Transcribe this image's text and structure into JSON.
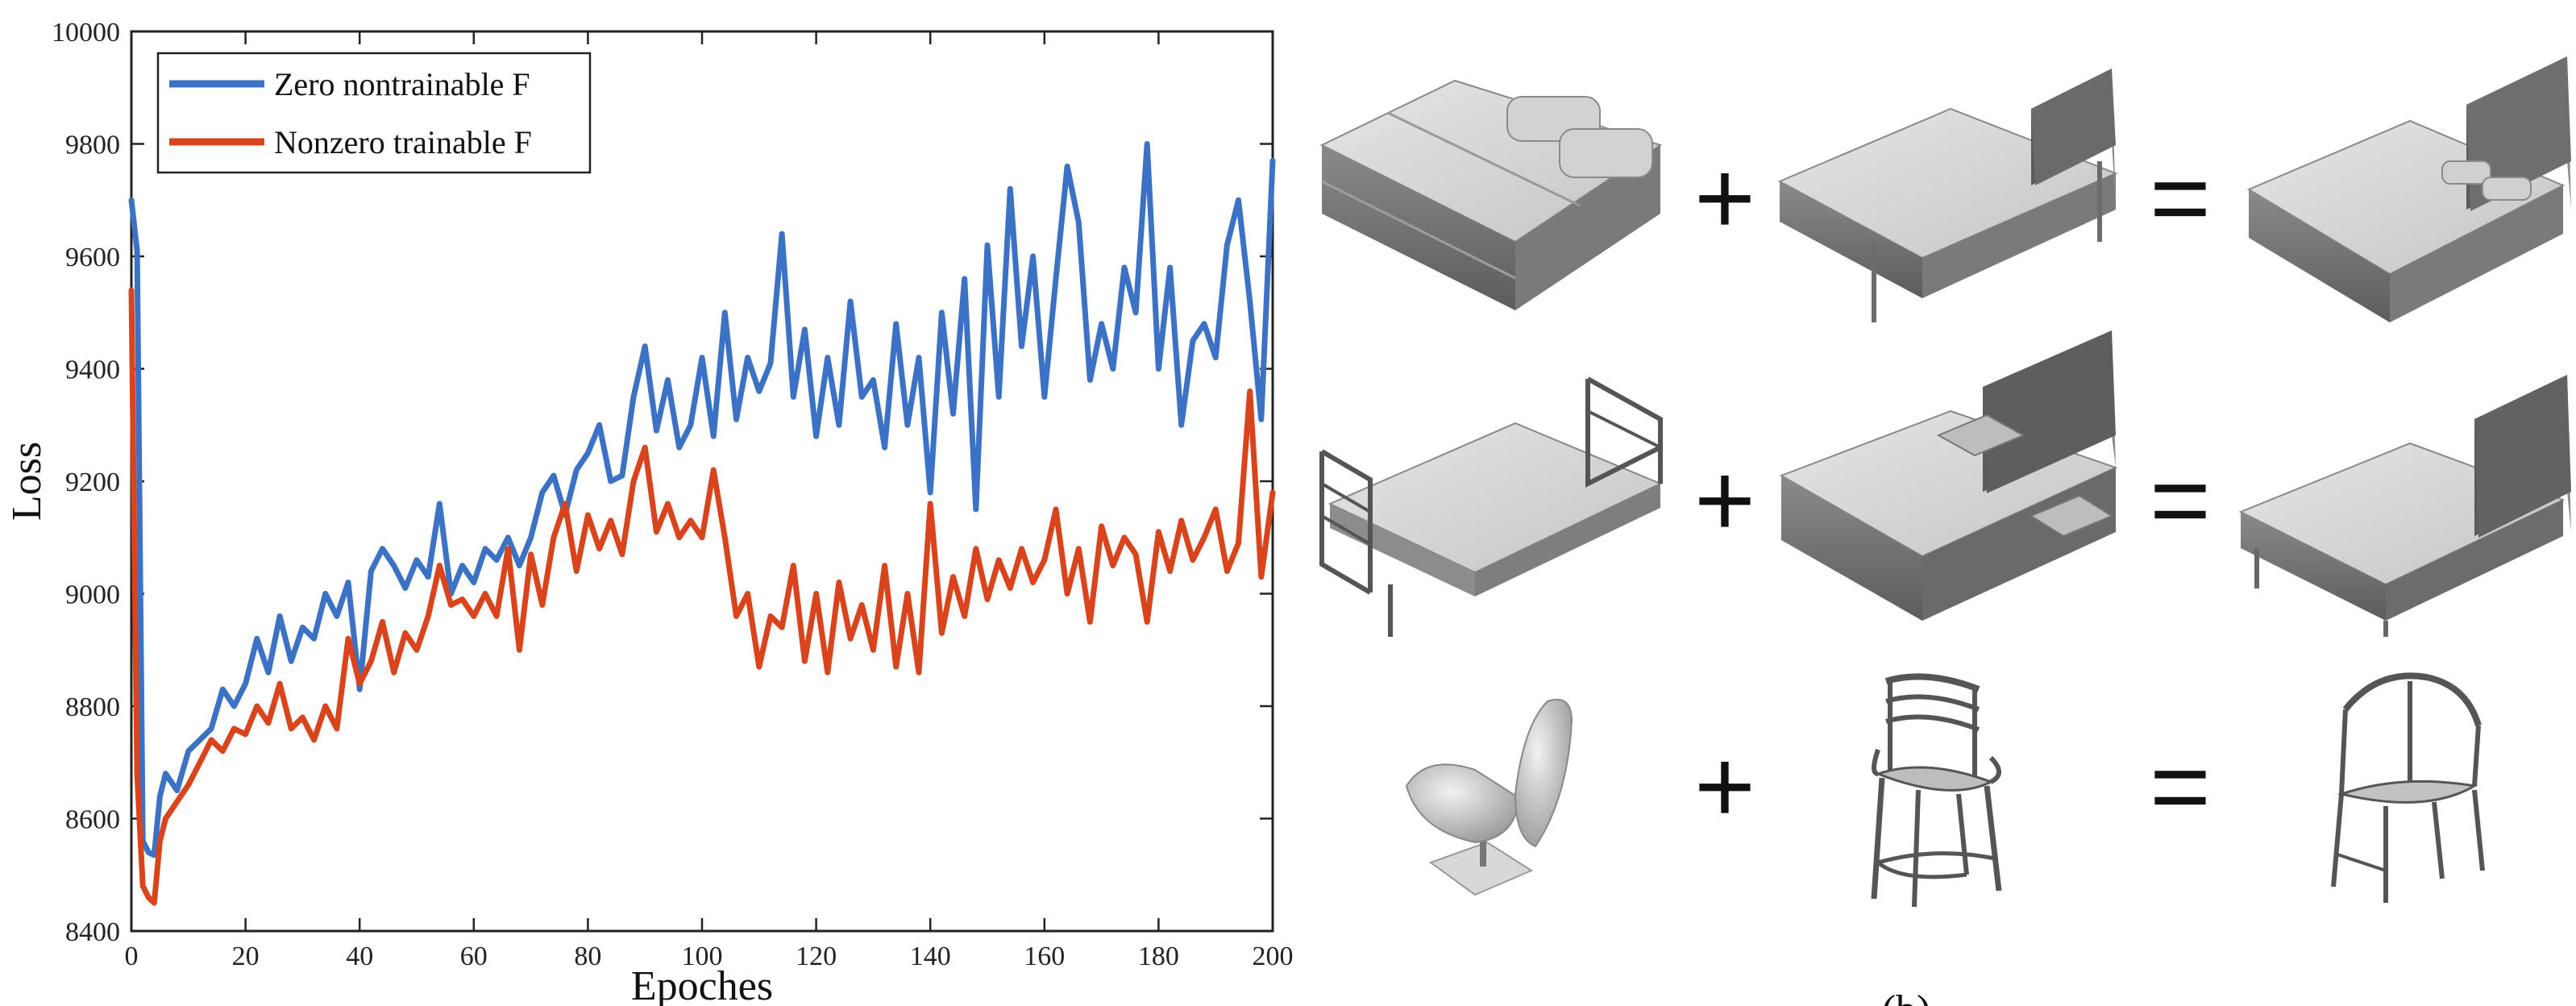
{
  "chart_data": {
    "type": "line",
    "title": "",
    "xlabel": "Epoches",
    "ylabel": "Loss",
    "xlim": [
      0,
      200
    ],
    "ylim": [
      8400,
      10000
    ],
    "xticks": [
      0,
      20,
      40,
      60,
      80,
      100,
      120,
      140,
      160,
      180,
      200
    ],
    "yticks": [
      8400,
      8600,
      8800,
      9000,
      9200,
      9400,
      9600,
      9800,
      10000
    ],
    "legend_position": "top-left",
    "grid": false,
    "series": [
      {
        "name": "Zero nontrainable F",
        "color": "#3b72c6",
        "x": [
          0,
          1,
          2,
          3,
          4,
          5,
          6,
          8,
          10,
          12,
          14,
          16,
          18,
          20,
          22,
          24,
          26,
          28,
          30,
          32,
          34,
          36,
          38,
          40,
          42,
          44,
          46,
          48,
          50,
          52,
          54,
          56,
          58,
          60,
          62,
          64,
          66,
          68,
          70,
          72,
          74,
          76,
          78,
          80,
          82,
          84,
          86,
          88,
          90,
          92,
          94,
          96,
          98,
          100,
          102,
          104,
          106,
          108,
          110,
          112,
          114,
          116,
          118,
          120,
          122,
          124,
          126,
          128,
          130,
          132,
          134,
          136,
          138,
          140,
          142,
          144,
          146,
          148,
          150,
          152,
          154,
          156,
          158,
          160,
          162,
          164,
          166,
          168,
          170,
          172,
          174,
          176,
          178,
          180,
          182,
          184,
          186,
          188,
          190,
          192,
          194,
          196,
          198,
          200
        ],
        "y": [
          9700,
          9610,
          8560,
          8540,
          8535,
          8640,
          8680,
          8650,
          8720,
          8740,
          8760,
          8830,
          8800,
          8840,
          8920,
          8860,
          8960,
          8880,
          8940,
          8920,
          9000,
          8960,
          9020,
          8830,
          9040,
          9080,
          9050,
          9010,
          9060,
          9030,
          9160,
          9000,
          9050,
          9020,
          9080,
          9060,
          9100,
          9050,
          9100,
          9180,
          9210,
          9140,
          9220,
          9250,
          9300,
          9200,
          9210,
          9350,
          9440,
          9290,
          9380,
          9260,
          9300,
          9420,
          9280,
          9500,
          9310,
          9420,
          9360,
          9410,
          9640,
          9350,
          9470,
          9280,
          9420,
          9300,
          9520,
          9350,
          9380,
          9260,
          9480,
          9300,
          9420,
          9180,
          9500,
          9320,
          9560,
          9150,
          9620,
          9350,
          9720,
          9440,
          9600,
          9350,
          9560,
          9760,
          9660,
          9380,
          9480,
          9400,
          9580,
          9500,
          9800,
          9400,
          9580,
          9300,
          9450,
          9480,
          9420,
          9620,
          9700,
          9520,
          9310,
          9770
        ]
      },
      {
        "name": "Nonzero trainable F",
        "color": "#d9441c",
        "x": [
          0,
          1,
          2,
          3,
          4,
          5,
          6,
          8,
          10,
          12,
          14,
          16,
          18,
          20,
          22,
          24,
          26,
          28,
          30,
          32,
          34,
          36,
          38,
          40,
          42,
          44,
          46,
          48,
          50,
          52,
          54,
          56,
          58,
          60,
          62,
          64,
          66,
          68,
          70,
          72,
          74,
          76,
          78,
          80,
          82,
          84,
          86,
          88,
          90,
          92,
          94,
          96,
          98,
          100,
          102,
          104,
          106,
          108,
          110,
          112,
          114,
          116,
          118,
          120,
          122,
          124,
          126,
          128,
          130,
          132,
          134,
          136,
          138,
          140,
          142,
          144,
          146,
          148,
          150,
          152,
          154,
          156,
          158,
          160,
          162,
          164,
          166,
          168,
          170,
          172,
          174,
          176,
          178,
          180,
          182,
          184,
          186,
          188,
          190,
          192,
          194,
          196,
          198,
          200
        ],
        "y": [
          9540,
          8680,
          8480,
          8460,
          8450,
          8560,
          8600,
          8630,
          8660,
          8700,
          8740,
          8720,
          8760,
          8750,
          8800,
          8770,
          8840,
          8760,
          8780,
          8740,
          8800,
          8760,
          8920,
          8840,
          8880,
          8950,
          8860,
          8930,
          8900,
          8960,
          9050,
          8980,
          8990,
          8960,
          9000,
          8960,
          9080,
          8900,
          9070,
          8980,
          9100,
          9160,
          9040,
          9140,
          9080,
          9130,
          9070,
          9200,
          9260,
          9110,
          9160,
          9100,
          9130,
          9100,
          9220,
          9100,
          8960,
          9000,
          8870,
          8960,
          8940,
          9050,
          8880,
          9000,
          8860,
          9020,
          8920,
          8980,
          8900,
          9050,
          8870,
          9000,
          8860,
          9160,
          8930,
          9030,
          8960,
          9080,
          8990,
          9060,
          9010,
          9080,
          9020,
          9060,
          9150,
          9000,
          9080,
          8950,
          9120,
          9050,
          9100,
          9070,
          8950,
          9110,
          9040,
          9130,
          9060,
          9100,
          9150,
          9040,
          9090,
          9360,
          9030,
          9180
        ]
      }
    ]
  },
  "right_panel": {
    "rows": [
      {
        "operands": [
          "bed with pillows",
          "bed with headboard",
          "combined bed"
        ]
      },
      {
        "operands": [
          "bed with metal frame",
          "bed with headboard and blocks",
          "combined bed"
        ]
      },
      {
        "operands": [
          "lounge chair",
          "bar stool chair",
          "wishbone chair"
        ]
      }
    ],
    "plus_symbol": "+",
    "equals_symbol": "=",
    "panel_label": "(b)"
  }
}
